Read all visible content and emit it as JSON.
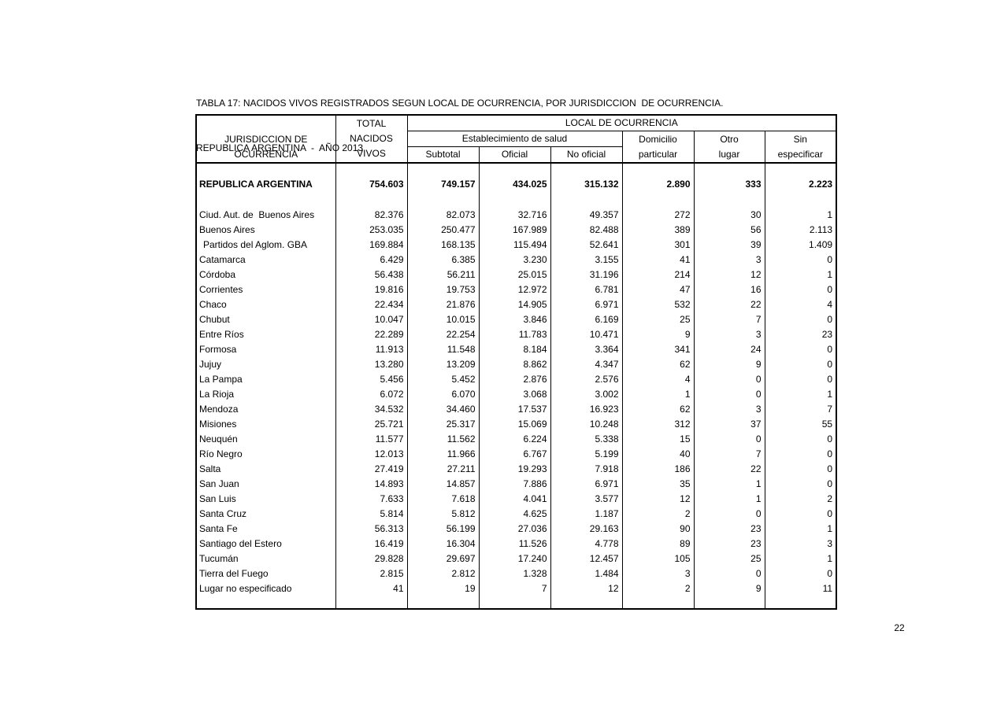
{
  "title": {
    "line1": "TABLA 17: NACIDOS VIVOS REGISTRADOS SEGUN LOCAL DE OCURRENCIA, POR JURISDICCION  DE OCURRENCIA.",
    "line2": "REPUBLICA ARGENTINA  -  AÑO 2013"
  },
  "page": {
    "number": "22"
  },
  "table": {
    "header": {
      "jurisdiccion_line1": "JURISDICCION  DE",
      "jurisdiccion_line2": "OCURRENCIA",
      "total_line1": "TOTAL",
      "total_line2": "NACIDOS",
      "total_line3": "VIVOS",
      "group_local": "LOCAL  DE OCURRENCIA",
      "group_establecimiento": "Establecimiento de salud",
      "col_subtotal": "Subtotal",
      "col_oficial": "Oficial",
      "col_no_oficial": "No oficial",
      "col_domicilio_line1": "Domicilio",
      "col_domicilio_line2": "particular",
      "col_otro_line1": "Otro",
      "col_otro_line2": "lugar",
      "col_sin_line1": "Sin",
      "col_sin_line2": "especificar"
    },
    "total_row": {
      "name": "REPUBLICA ARGENTINA",
      "values": [
        "754.603",
        "749.157",
        "434.025",
        "315.132",
        "2.890",
        "333",
        "2.223"
      ]
    },
    "rows": [
      {
        "name": "Ciud. Aut. de  Buenos Aires",
        "indent": false,
        "values": [
          "82.376",
          "82.073",
          "32.716",
          "49.357",
          "272",
          "30",
          "1"
        ]
      },
      {
        "name": "Buenos Aires",
        "indent": false,
        "values": [
          "253.035",
          "250.477",
          "167.989",
          "82.488",
          "389",
          "56",
          "2.113"
        ]
      },
      {
        "name": "Partidos del Aglom. GBA",
        "indent": true,
        "values": [
          "169.884",
          "168.135",
          "115.494",
          "52.641",
          "301",
          "39",
          "1.409"
        ]
      },
      {
        "name": "Catamarca",
        "indent": false,
        "values": [
          "6.429",
          "6.385",
          "3.230",
          "3.155",
          "41",
          "3",
          "0"
        ]
      },
      {
        "name": "Córdoba",
        "indent": false,
        "values": [
          "56.438",
          "56.211",
          "25.015",
          "31.196",
          "214",
          "12",
          "1"
        ]
      },
      {
        "name": "Corrientes",
        "indent": false,
        "values": [
          "19.816",
          "19.753",
          "12.972",
          "6.781",
          "47",
          "16",
          "0"
        ]
      },
      {
        "name": "Chaco",
        "indent": false,
        "values": [
          "22.434",
          "21.876",
          "14.905",
          "6.971",
          "532",
          "22",
          "4"
        ]
      },
      {
        "name": "Chubut",
        "indent": false,
        "values": [
          "10.047",
          "10.015",
          "3.846",
          "6.169",
          "25",
          "7",
          "0"
        ]
      },
      {
        "name": "Entre Ríos",
        "indent": false,
        "values": [
          "22.289",
          "22.254",
          "11.783",
          "10.471",
          "9",
          "3",
          "23"
        ]
      },
      {
        "name": "Formosa",
        "indent": false,
        "values": [
          "11.913",
          "11.548",
          "8.184",
          "3.364",
          "341",
          "24",
          "0"
        ]
      },
      {
        "name": "Jujuy",
        "indent": false,
        "values": [
          "13.280",
          "13.209",
          "8.862",
          "4.347",
          "62",
          "9",
          "0"
        ]
      },
      {
        "name": "La Pampa",
        "indent": false,
        "values": [
          "5.456",
          "5.452",
          "2.876",
          "2.576",
          "4",
          "0",
          "0"
        ]
      },
      {
        "name": "La Rioja",
        "indent": false,
        "values": [
          "6.072",
          "6.070",
          "3.068",
          "3.002",
          "1",
          "0",
          "1"
        ]
      },
      {
        "name": "Mendoza",
        "indent": false,
        "values": [
          "34.532",
          "34.460",
          "17.537",
          "16.923",
          "62",
          "3",
          "7"
        ]
      },
      {
        "name": "Misiones",
        "indent": false,
        "values": [
          "25.721",
          "25.317",
          "15.069",
          "10.248",
          "312",
          "37",
          "55"
        ]
      },
      {
        "name": "Neuquén",
        "indent": false,
        "values": [
          "11.577",
          "11.562",
          "6.224",
          "5.338",
          "15",
          "0",
          "0"
        ]
      },
      {
        "name": "Río Negro",
        "indent": false,
        "values": [
          "12.013",
          "11.966",
          "6.767",
          "5.199",
          "40",
          "7",
          "0"
        ]
      },
      {
        "name": "Salta",
        "indent": false,
        "values": [
          "27.419",
          "27.211",
          "19.293",
          "7.918",
          "186",
          "22",
          "0"
        ]
      },
      {
        "name": "San Juan",
        "indent": false,
        "values": [
          "14.893",
          "14.857",
          "7.886",
          "6.971",
          "35",
          "1",
          "0"
        ]
      },
      {
        "name": "San Luis",
        "indent": false,
        "values": [
          "7.633",
          "7.618",
          "4.041",
          "3.577",
          "12",
          "1",
          "2"
        ]
      },
      {
        "name": "Santa Cruz",
        "indent": false,
        "values": [
          "5.814",
          "5.812",
          "4.625",
          "1.187",
          "2",
          "0",
          "0"
        ]
      },
      {
        "name": "Santa Fe",
        "indent": false,
        "values": [
          "56.313",
          "56.199",
          "27.036",
          "29.163",
          "90",
          "23",
          "1"
        ]
      },
      {
        "name": "Santiago del Estero",
        "indent": false,
        "values": [
          "16.419",
          "16.304",
          "11.526",
          "4.778",
          "89",
          "23",
          "3"
        ]
      },
      {
        "name": "Tucumán",
        "indent": false,
        "values": [
          "29.828",
          "29.697",
          "17.240",
          "12.457",
          "105",
          "25",
          "1"
        ]
      },
      {
        "name": "Tierra del Fuego",
        "indent": false,
        "values": [
          "2.815",
          "2.812",
          "1.328",
          "1.484",
          "3",
          "0",
          "0"
        ]
      },
      {
        "name": "Lugar no especificado",
        "indent": false,
        "values": [
          "41",
          "19",
          "7",
          "12",
          "2",
          "9",
          "11"
        ]
      }
    ]
  }
}
